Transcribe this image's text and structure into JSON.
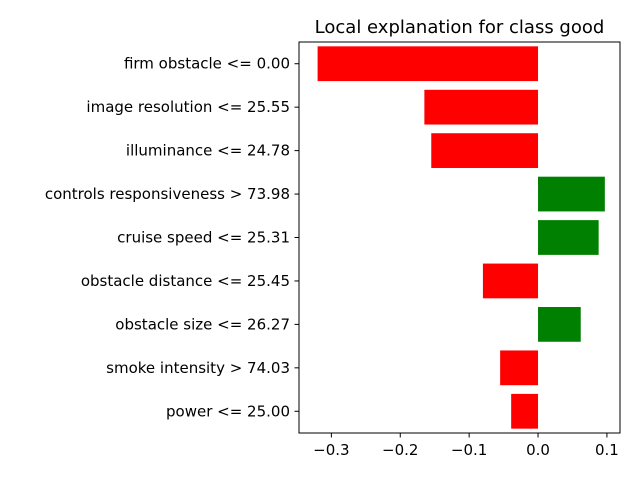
{
  "chart_data": {
    "type": "bar",
    "orientation": "horizontal",
    "title": "Local explanation for class good",
    "xlabel": "",
    "ylabel": "",
    "categories": [
      "firm obstacle <= 0.00",
      "image resolution <= 25.55",
      "illuminance <= 24.78",
      "controls responsiveness > 73.98",
      "cruise speed <= 25.31",
      "obstacle distance <= 25.45",
      "obstacle size <= 26.27",
      "smoke intensity > 74.03",
      "power <= 25.00"
    ],
    "values": [
      -0.32,
      -0.165,
      -0.155,
      0.097,
      0.088,
      -0.08,
      0.062,
      -0.055,
      -0.039
    ],
    "xlim": [
      -0.347,
      0.119
    ],
    "xticks": [
      -0.3,
      -0.2,
      -0.1,
      0.0,
      0.1
    ],
    "xtick_labels": [
      "−0.3",
      "−0.2",
      "−0.1",
      "0.0",
      "0.1"
    ],
    "colors": {
      "positive": "#008000",
      "negative": "#ff0000"
    },
    "grid": false,
    "legend": "none"
  }
}
